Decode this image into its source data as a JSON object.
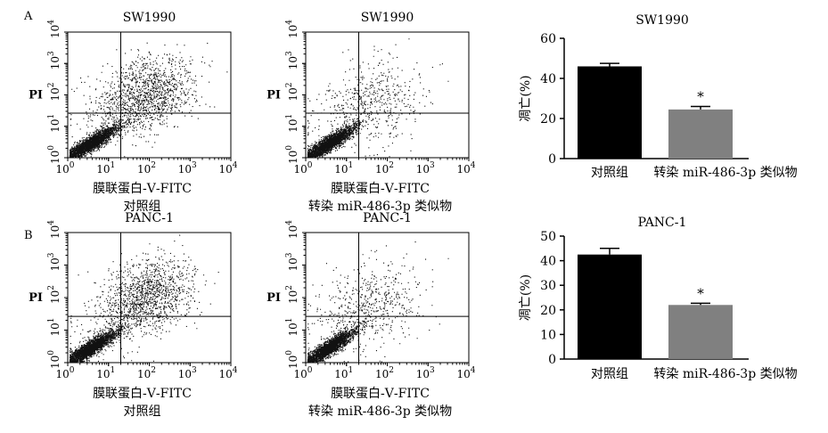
{
  "panels": [
    {
      "letter": "A",
      "cytometry": [
        {
          "title": "SW1990",
          "xlabel": "膜联蛋白-Ⅴ-FITC",
          "caption": "对照组",
          "ylabel": "PI",
          "density": "high"
        },
        {
          "title": "SW1990",
          "xlabel": "膜联蛋白-Ⅴ-FITC",
          "caption": "转染 miR-486-3p 类似物",
          "ylabel": "PI",
          "density": "low"
        }
      ]
    },
    {
      "letter": "B",
      "cytometry": [
        {
          "title": "PANC-1",
          "xlabel": "膜联蛋白-Ⅴ-FITC",
          "caption": "对照组",
          "ylabel": "PI",
          "density": "high"
        },
        {
          "title": "PANC-1",
          "xlabel": "膜联蛋白-Ⅴ-FITC",
          "caption": "转染 miR-486-3p 类似物",
          "ylabel": "PI",
          "density": "low"
        }
      ]
    }
  ],
  "log_ticks": {
    "base": "10",
    "exponents": [
      "0",
      "1",
      "2",
      "3",
      "4"
    ]
  },
  "chart_data": [
    {
      "type": "bar",
      "title": "SW1990",
      "ylabel": "凋亡(%)",
      "categories": [
        "对照组",
        "转染 miR-486-3p 类似物"
      ],
      "values": [
        46,
        24.5
      ],
      "errors": [
        1.5,
        1.5
      ],
      "significance": [
        "",
        "*"
      ],
      "colors": [
        "#000000",
        "#808080"
      ],
      "ylim": [
        0,
        60
      ],
      "yticks": [
        "0",
        "20",
        "40",
        "60"
      ]
    },
    {
      "type": "bar",
      "title": "PANC-1",
      "ylabel": "凋亡(%)",
      "categories": [
        "对照组",
        "转染 miR-486-3p 类似物"
      ],
      "values": [
        42.5,
        22
      ],
      "errors": [
        2.5,
        0.7
      ],
      "significance": [
        "",
        "*"
      ],
      "colors": [
        "#000000",
        "#808080"
      ],
      "ylim": [
        0,
        50
      ],
      "yticks": [
        "0",
        "10",
        "20",
        "30",
        "40",
        "50"
      ]
    }
  ]
}
